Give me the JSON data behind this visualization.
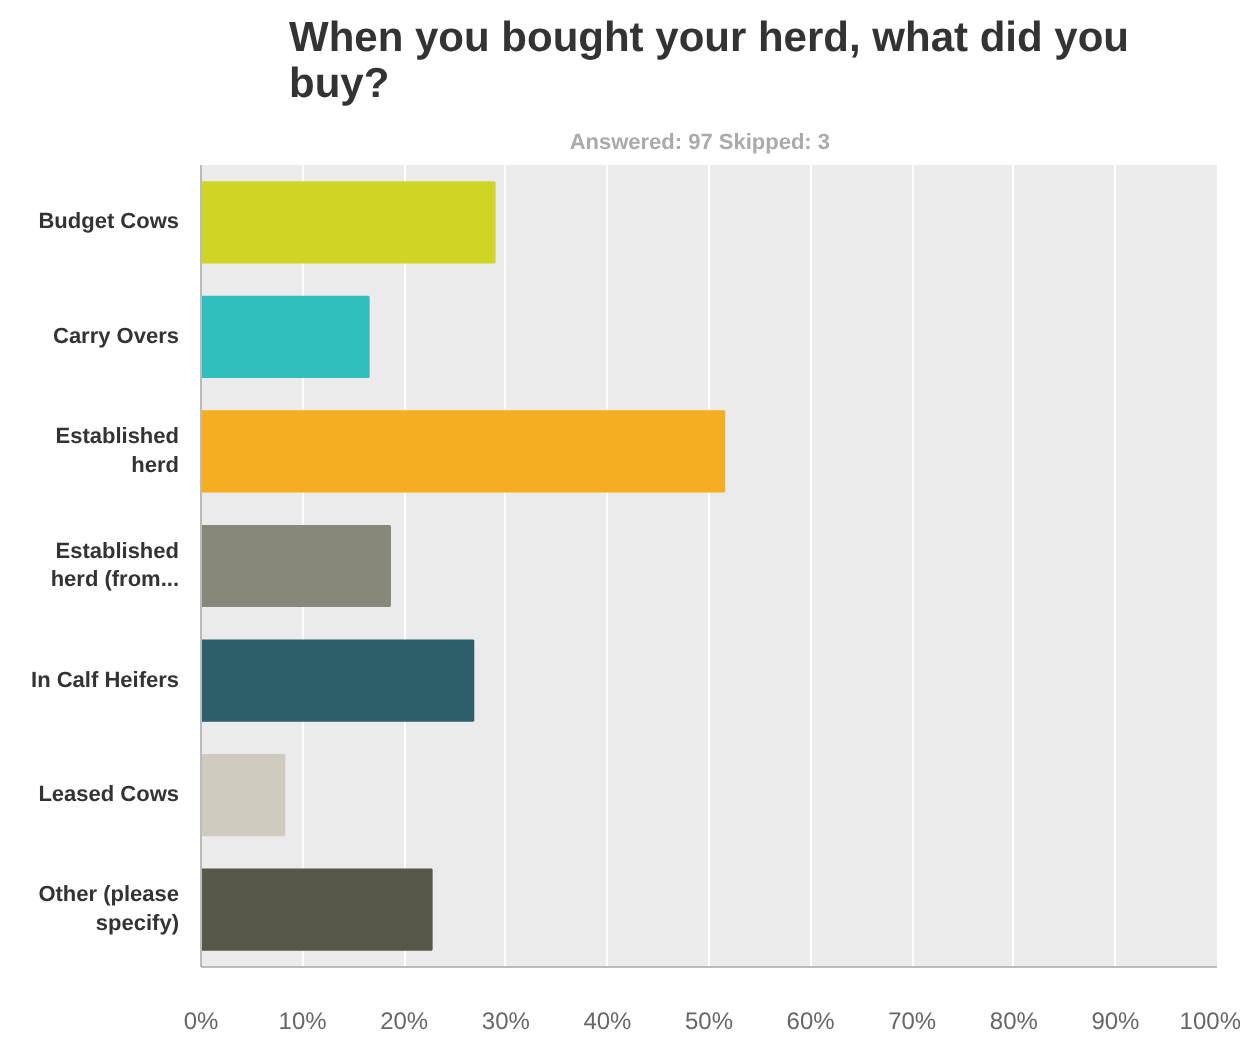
{
  "chart_data": {
    "type": "bar",
    "orientation": "horizontal",
    "title": "When you bought your herd, what did you\nbuy?",
    "subtitle": "Answered: 97    Skipped: 3",
    "categories": [
      "Budget Cows",
      "Carry Overs",
      "Established\nherd",
      "Established\nherd (from...",
      "In Calf Heifers",
      "Leased Cows",
      "Other (please\nspecify)"
    ],
    "values": [
      28.9,
      16.5,
      51.5,
      18.6,
      26.8,
      8.2,
      22.7
    ],
    "colors": [
      "#d0d525",
      "#31bebe",
      "#f5ae1f",
      "#87887a",
      "#2c5f6a",
      "#cfccbf",
      "#57574a"
    ],
    "xlim": [
      0,
      100
    ],
    "xticks": [
      {
        "value": 0,
        "label": "0%"
      },
      {
        "value": 10,
        "label": "10%"
      },
      {
        "value": 20,
        "label": "20%"
      },
      {
        "value": 30,
        "label": "30%"
      },
      {
        "value": 40,
        "label": "40%"
      },
      {
        "value": 50,
        "label": "50%"
      },
      {
        "value": 60,
        "label": "60%"
      },
      {
        "value": 70,
        "label": "70%"
      },
      {
        "value": 80,
        "label": "80%"
      },
      {
        "value": 90,
        "label": "90%"
      },
      {
        "value": 100,
        "label": "100%"
      }
    ],
    "grid": "x"
  }
}
